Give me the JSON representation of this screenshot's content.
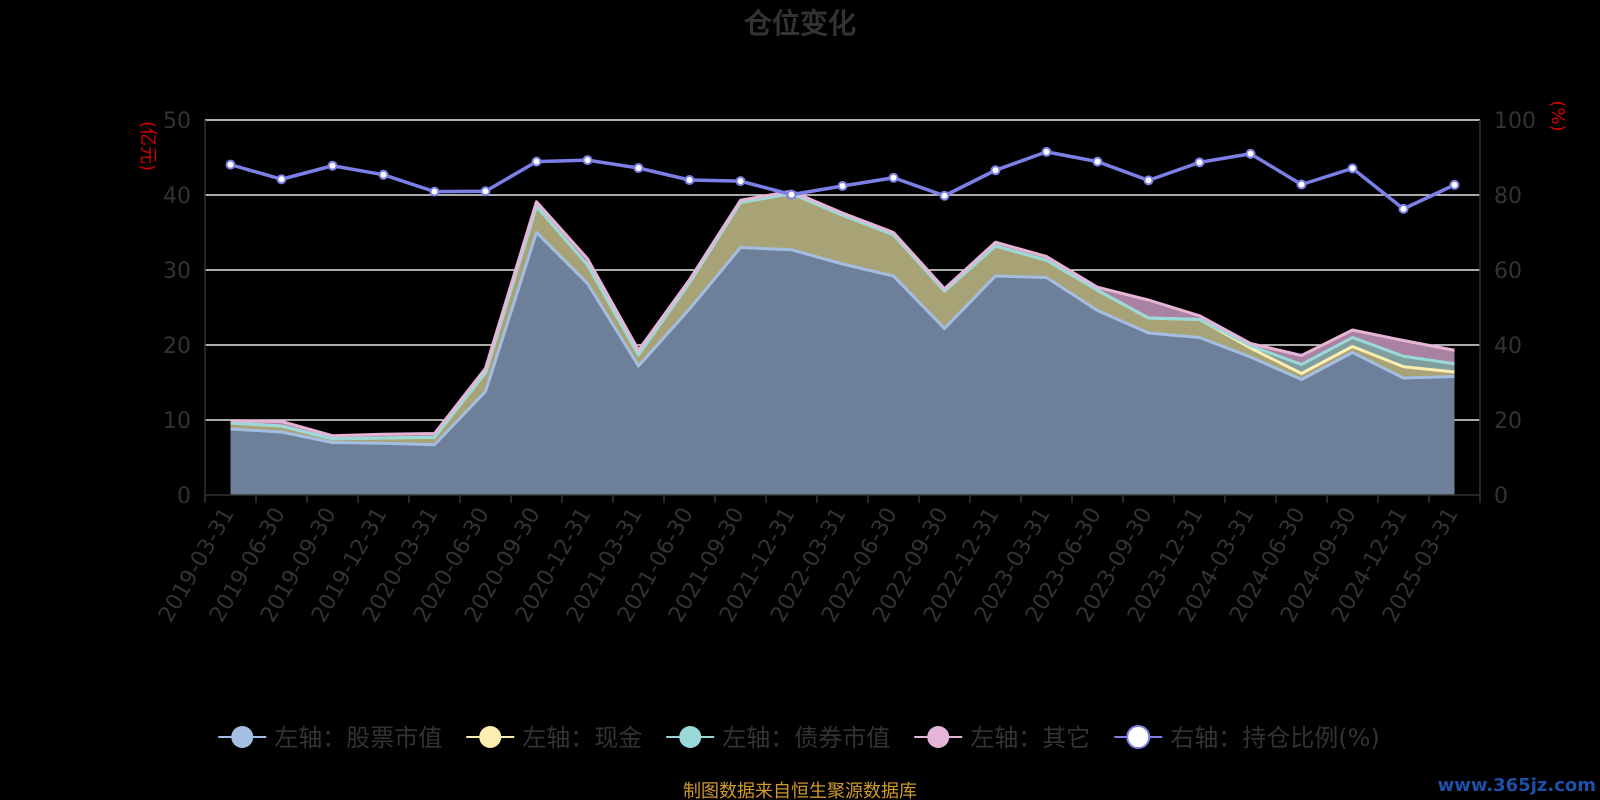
{
  "chart_data": {
    "type": "area",
    "title": "仓位变化",
    "left_unit": "(亿元)",
    "right_unit": "(%)",
    "x": [
      "2019-03-31",
      "2019-06-30",
      "2019-09-30",
      "2019-12-31",
      "2020-03-31",
      "2020-06-30",
      "2020-09-30",
      "2020-12-31",
      "2021-03-31",
      "2021-06-30",
      "2021-09-30",
      "2021-12-31",
      "2022-03-31",
      "2022-06-30",
      "2022-09-30",
      "2022-12-31",
      "2023-03-31",
      "2023-06-30",
      "2023-09-30",
      "2023-12-31",
      "2024-03-31",
      "2024-06-30",
      "2024-09-30",
      "2024-12-31",
      "2025-03-31"
    ],
    "ylim_left": [
      0,
      50
    ],
    "yticks_left": [
      "0",
      "10",
      "20",
      "30",
      "40",
      "50"
    ],
    "ylim_right": [
      0,
      100
    ],
    "yticks_right": [
      "0",
      "20",
      "40",
      "60",
      "80",
      "100"
    ],
    "stacked_series": [
      {
        "name": "左轴：股票市值",
        "color": "#a3bde3",
        "values": [
          8.8,
          8.4,
          7.0,
          6.9,
          6.7,
          13.8,
          35.0,
          28.2,
          17.2,
          24.8,
          33.0,
          32.7,
          30.8,
          29.2,
          22.2,
          29.2,
          29.0,
          24.6,
          21.6,
          21.0,
          18.4,
          15.4,
          19.0,
          15.6,
          15.8
        ]
      },
      {
        "name": "左轴：现金",
        "color": "#fcedb0",
        "values": [
          0.8,
          0.8,
          0.5,
          0.7,
          1.0,
          2.5,
          3.5,
          2.5,
          1.5,
          3.5,
          6.0,
          7.5,
          6.5,
          5.5,
          5.0,
          4.0,
          2.3,
          2.7,
          2.0,
          2.4,
          1.2,
          0.8,
          0.8,
          1.5,
          0.6
        ]
      },
      {
        "name": "左轴：债券市值",
        "color": "#9ad9d9",
        "values": [
          0,
          0,
          0,
          0,
          0,
          0,
          0,
          0,
          0,
          0,
          0,
          0,
          0,
          0,
          0,
          0,
          0,
          0,
          0,
          0,
          0.3,
          1.2,
          1.2,
          1.4,
          1.1
        ]
      },
      {
        "name": "左轴：其它",
        "color": "#e6b4d6",
        "values": [
          0.3,
          0.6,
          0.4,
          0.5,
          0.5,
          0.6,
          0.6,
          0.8,
          0.6,
          0.4,
          0.3,
          0.3,
          0.3,
          0.3,
          0.3,
          0.5,
          0.5,
          0.4,
          2.4,
          0.5,
          0.3,
          1.2,
          1.0,
          2.1,
          1.8
        ]
      }
    ],
    "line_series": {
      "name": "右轴：持仓比例(%)",
      "color": "#7b7fe6",
      "values": [
        88.1,
        84.2,
        87.8,
        85.4,
        80.9,
        81.0,
        88.9,
        89.3,
        87.2,
        84.0,
        83.7,
        80.1,
        82.4,
        84.6,
        79.8,
        86.6,
        91.5,
        88.9,
        83.9,
        88.7,
        91.0,
        82.8,
        87.1,
        76.3,
        82.7
      ]
    },
    "grid": true,
    "legend_position": "bottom",
    "legend": [
      "左轴：股票市值",
      "左轴：现金",
      "左轴：债券市值",
      "左轴：其它",
      "右轴：持仓比例(%)"
    ]
  },
  "footer": {
    "source": "制图数据来自恒生聚源数据库",
    "watermark": "www.365jz.com"
  }
}
